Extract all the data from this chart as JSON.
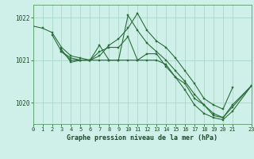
{
  "title": "Graphe pression niveau de la mer (hPa)",
  "background_color": "#cff0e8",
  "plot_bg_color": "#cff0e8",
  "grid_color": "#a8d8cc",
  "line_color": "#2a6e3a",
  "marker_color": "#2a6e3a",
  "xlim": [
    0,
    23
  ],
  "ylim": [
    1019.5,
    1022.3
  ],
  "yticks": [
    1020,
    1021,
    1022
  ],
  "xticks": [
    0,
    1,
    2,
    3,
    4,
    5,
    6,
    7,
    8,
    9,
    10,
    11,
    12,
    13,
    14,
    15,
    16,
    17,
    18,
    19,
    20,
    21,
    23
  ],
  "series": [
    {
      "x": [
        0,
        1,
        2,
        3,
        4,
        5,
        6,
        7,
        8,
        9,
        10,
        11,
        12,
        13,
        14,
        15,
        16,
        17,
        18,
        19,
        20,
        21
      ],
      "y": [
        1021.8,
        1021.75,
        1021.65,
        1021.3,
        1021.1,
        1021.05,
        1021.0,
        1021.1,
        1021.35,
        1021.5,
        1021.75,
        1022.1,
        1021.7,
        1021.45,
        1021.3,
        1021.05,
        1020.75,
        1020.45,
        1020.1,
        1019.95,
        1019.85,
        1020.35
      ]
    },
    {
      "x": [
        2,
        3,
        4,
        5,
        6,
        7,
        8,
        9,
        10,
        11,
        12,
        13,
        14,
        15,
        16,
        17,
        18,
        19,
        20,
        21,
        23
      ],
      "y": [
        1021.6,
        1021.2,
        1021.05,
        1021.0,
        1021.0,
        1021.2,
        1021.3,
        1021.3,
        1021.55,
        1021.0,
        1021.15,
        1021.15,
        1020.85,
        1020.6,
        1020.45,
        1020.1,
        1019.95,
        1019.75,
        1019.65,
        1019.95,
        1020.4
      ]
    },
    {
      "x": [
        3,
        4,
        5,
        6,
        7,
        8,
        9,
        10,
        11,
        12,
        13,
        14,
        15,
        16,
        17,
        18,
        19,
        20,
        21,
        23
      ],
      "y": [
        1021.25,
        1020.95,
        1021.0,
        1021.0,
        1021.35,
        1021.0,
        1021.0,
        1021.0,
        1021.0,
        1021.0,
        1021.0,
        1020.9,
        1020.6,
        1020.3,
        1019.95,
        1019.75,
        1019.65,
        1019.6,
        1019.8,
        1020.4
      ]
    },
    {
      "x": [
        3,
        4,
        5,
        6,
        7,
        8,
        9,
        10,
        11,
        12,
        13,
        14,
        15,
        16,
        17,
        18,
        19,
        20,
        21,
        23
      ],
      "y": [
        1021.2,
        1021.0,
        1021.0,
        1021.0,
        1021.0,
        1021.0,
        1021.0,
        1022.05,
        1021.7,
        1021.4,
        1021.2,
        1021.0,
        1020.75,
        1020.5,
        1020.2,
        1019.95,
        1019.7,
        1019.65,
        1019.9,
        1020.4
      ]
    }
  ]
}
